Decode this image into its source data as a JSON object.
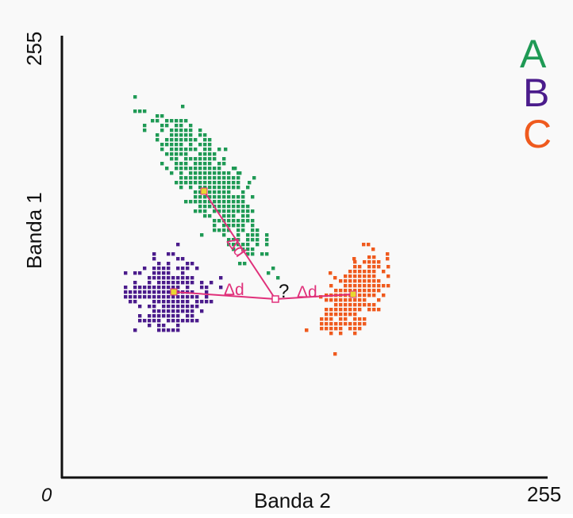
{
  "axes": {
    "y_label": "Banda 1",
    "x_label": "Banda 2",
    "y_max_label": "255",
    "x_max_label": "255",
    "origin_label": "0"
  },
  "legend": [
    {
      "letter": "A",
      "color": "#1f9a55"
    },
    {
      "letter": "B",
      "color": "#4b1c8c"
    },
    {
      "letter": "C",
      "color": "#ef5a1e"
    }
  ],
  "annotations": {
    "unknown_mark": "?",
    "distance_label": "Δd"
  },
  "colors": {
    "cluster_a": "#1f9a55",
    "cluster_b": "#4b1c8c",
    "cluster_c": "#ef5a1e",
    "distance_line": "#e0307a",
    "centroid": "#e8d830",
    "axis": "#111111"
  }
}
